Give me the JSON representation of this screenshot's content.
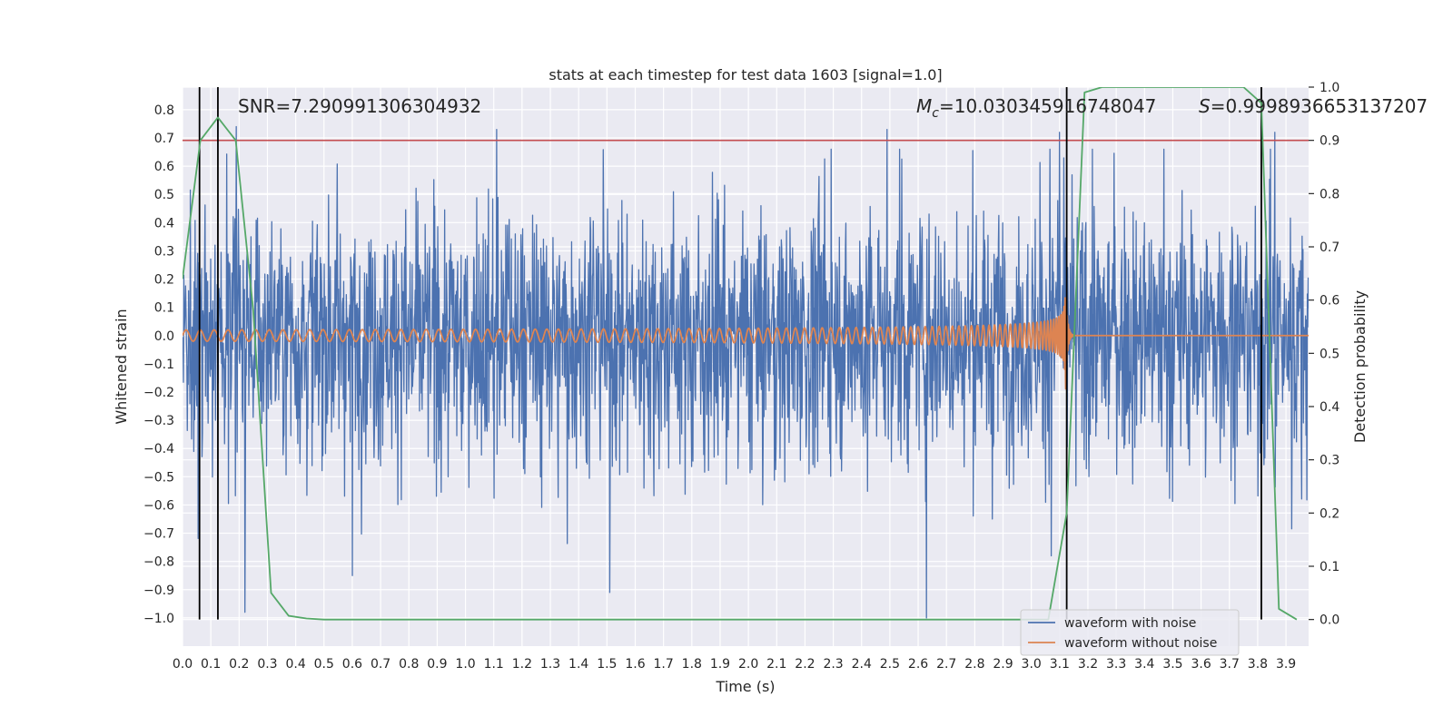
{
  "chart_data": {
    "type": "line",
    "title": "stats at each timestep for test data 1603 [signal=1.0]",
    "xlabel": "Time (s)",
    "ylabel": "Whitened strain",
    "ylabel_right": "Detection probability",
    "xlim": [
      0.0,
      3.98
    ],
    "ylim": [
      -1.1,
      0.88
    ],
    "ylim_right": [
      -0.05,
      1.0
    ],
    "x_ticks": [
      "0.0",
      "0.1",
      "0.2",
      "0.3",
      "0.4",
      "0.5",
      "0.6",
      "0.7",
      "0.8",
      "0.9",
      "1.0",
      "1.1",
      "1.2",
      "1.3",
      "1.4",
      "1.5",
      "1.6",
      "1.7",
      "1.8",
      "1.9",
      "2.0",
      "2.1",
      "2.2",
      "2.3",
      "2.4",
      "2.5",
      "2.6",
      "2.7",
      "2.8",
      "2.9",
      "3.0",
      "3.1",
      "3.2",
      "3.3",
      "3.4",
      "3.5",
      "3.6",
      "3.7",
      "3.8",
      "3.9"
    ],
    "y_ticks": [
      "0.8",
      "0.7",
      "0.6",
      "0.5",
      "0.4",
      "0.3",
      "0.2",
      "0.1",
      "0.0",
      "−0.1",
      "−0.2",
      "−0.3",
      "−0.4",
      "−0.5",
      "−0.6",
      "−0.7",
      "−0.8",
      "−0.9",
      "−1.0"
    ],
    "y_ticks_right": [
      "1.0",
      "0.9",
      "0.8",
      "0.7",
      "0.6",
      "0.5",
      "0.4",
      "0.3",
      "0.2",
      "0.1",
      "0.0"
    ],
    "grid": true,
    "legend_position": "bottom-right",
    "annotations": {
      "snr": "SNR=7.290991306304932",
      "mc_symbol": "M",
      "mc_subscript": "c",
      "mc_value": "=10.030345916748047",
      "s_symbol": "S",
      "s_value": "=0.9998936653137207"
    },
    "series": [
      {
        "name": "waveform with noise",
        "axis": "left",
        "color": "#4c72b0",
        "description": "noisy whitened strain, roughly zero-mean noise between about -0.98 and 0.74",
        "noise_amplitude": 0.22,
        "extremes": [
          {
            "x": 0.22,
            "y": -0.98
          },
          {
            "x": 0.6,
            "y": -0.85
          },
          {
            "x": 1.51,
            "y": -0.91
          },
          {
            "x": 2.63,
            "y": -1.0
          },
          {
            "x": 3.07,
            "y": -0.78
          },
          {
            "x": 0.19,
            "y": 0.74
          },
          {
            "x": 1.11,
            "y": 0.73
          },
          {
            "x": 2.49,
            "y": 0.73
          },
          {
            "x": 3.1,
            "y": 0.72
          },
          {
            "x": 3.86,
            "y": 0.72
          }
        ]
      },
      {
        "name": "waveform without noise",
        "axis": "left",
        "color": "#dd8452",
        "description": "chirp signal growing in amplitude and frequency, merger near 3.12 s",
        "start_amplitude": 0.02,
        "peak_amplitude": 0.25,
        "start_frequency_hz": 20,
        "merger_time": 3.12
      },
      {
        "name": "",
        "axis": "right",
        "color": "#55a868",
        "x": [
          0.0,
          0.063,
          0.125,
          0.188,
          0.25,
          0.313,
          0.375,
          0.438,
          0.5,
          0.6,
          1.0,
          2.0,
          3.0,
          3.06,
          3.125,
          3.188,
          3.25,
          3.5,
          3.75,
          3.813,
          3.875,
          3.938
        ],
        "y": [
          0.64,
          0.9,
          0.943,
          0.9,
          0.58,
          0.05,
          0.007,
          0.002,
          0.0,
          0.0,
          0.0,
          0.0,
          0.0,
          0.0,
          0.2,
          0.99,
          1.0,
          1.0,
          1.0,
          0.97,
          0.02,
          0.0
        ]
      }
    ],
    "threshold_line": {
      "axis": "right",
      "y": 0.9,
      "color": "#c44e52"
    },
    "vertical_markers": [
      {
        "x": 0.06,
        "color": "#000000"
      },
      {
        "x": 0.125,
        "color": "#000000"
      },
      {
        "x": 3.125,
        "color": "#000000"
      },
      {
        "x": 3.813,
        "color": "#000000"
      }
    ],
    "legend": {
      "entries": [
        {
          "label": "waveform with noise",
          "color": "#4c72b0"
        },
        {
          "label": "waveform without noise",
          "color": "#dd8452"
        }
      ]
    },
    "colors": {
      "plot_background": "#eaeaf2",
      "grid": "#ffffff",
      "text": "#262626"
    }
  }
}
